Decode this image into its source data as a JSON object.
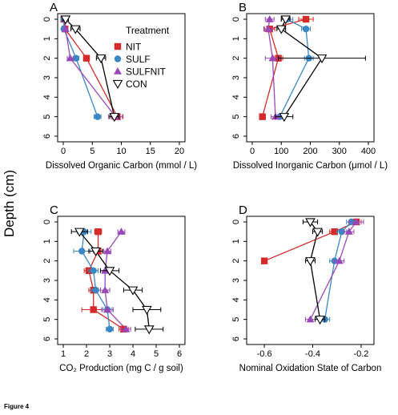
{
  "figure_caption": "Figure 4",
  "y_axis_title": "Depth (cm)",
  "legend": {
    "title": "Treatment",
    "placement": "top-right of panel A",
    "entries": [
      {
        "name": "NIT",
        "marker": "square",
        "color": "#d42a2a"
      },
      {
        "name": "SULF",
        "marker": "circle",
        "color": "#3a87c4"
      },
      {
        "name": "SULFNIT",
        "marker": "triangle-up",
        "color": "#9a48b8"
      },
      {
        "name": "CON",
        "marker": "triangle-down-open",
        "color": "#000000"
      }
    ]
  },
  "chart_data": [
    {
      "panel": "A",
      "type": "line",
      "xlabel": "Dissolved Organic Carbon (mmol / L)",
      "xlim": [
        0,
        20
      ],
      "ylim": [
        6,
        0
      ],
      "xticks": [
        "0",
        "5",
        "10",
        "15",
        "20"
      ],
      "yticks": [
        "0",
        "1",
        "2",
        "3",
        "4",
        "5",
        "6"
      ],
      "series": [
        {
          "name": "NIT",
          "points": [
            {
              "y": 0,
              "x": 0.1,
              "e": 0.3
            },
            {
              "y": 0.5,
              "x": 0.3,
              "e": 0.3
            },
            {
              "y": 2,
              "x": 4.0,
              "e": 0.5
            },
            {
              "y": 5,
              "x": 9.3,
              "e": 1.0
            }
          ]
        },
        {
          "name": "SULF",
          "points": [
            {
              "y": 0,
              "x": 0.1,
              "e": 0.3
            },
            {
              "y": 0.5,
              "x": 0.1,
              "e": 0.3
            },
            {
              "y": 2,
              "x": 2.2,
              "e": 0.5
            },
            {
              "y": 5,
              "x": 5.9,
              "e": 0.6
            }
          ]
        },
        {
          "name": "SULFNIT",
          "points": [
            {
              "y": 0,
              "x": 0.3,
              "e": 0.3
            },
            {
              "y": 0.5,
              "x": 0.4,
              "e": 0.3
            },
            {
              "y": 2,
              "x": 1.2,
              "e": 0.5
            },
            {
              "y": 5,
              "x": 9.0,
              "e": 1.2
            }
          ]
        },
        {
          "name": "CON",
          "points": [
            {
              "y": 0,
              "x": 0.4,
              "e": 0.5
            },
            {
              "y": 0.5,
              "x": 2.1,
              "e": 0.8
            },
            {
              "y": 2,
              "x": 6.5,
              "e": 0.8
            },
            {
              "y": 5,
              "x": 8.8,
              "e": 0.8
            }
          ]
        }
      ]
    },
    {
      "panel": "B",
      "type": "line",
      "xlabel": "Dissolved Inorganic Carbon (μmol / L)",
      "xlim": [
        0,
        400
      ],
      "ylim": [
        6,
        0
      ],
      "xticks": [
        "0",
        "100",
        "200",
        "300",
        "400"
      ],
      "yticks": [
        "0",
        "1",
        "2",
        "3",
        "4",
        "5",
        "6"
      ],
      "series": [
        {
          "name": "NIT",
          "points": [
            {
              "y": 0,
              "x": 185,
              "e": 25
            },
            {
              "y": 0.5,
              "x": 60,
              "e": 18
            },
            {
              "y": 2,
              "x": 90,
              "e": 15
            },
            {
              "y": 5,
              "x": 35,
              "e": 10
            }
          ]
        },
        {
          "name": "SULF",
          "points": [
            {
              "y": 0,
              "x": 120,
              "e": 20
            },
            {
              "y": 0.5,
              "x": 185,
              "e": 15
            },
            {
              "y": 2,
              "x": 195,
              "e": 15
            },
            {
              "y": 5,
              "x": 95,
              "e": 15
            }
          ]
        },
        {
          "name": "SULFNIT",
          "points": [
            {
              "y": 0,
              "x": 60,
              "e": 15
            },
            {
              "y": 0.5,
              "x": 55,
              "e": 15
            },
            {
              "y": 2,
              "x": 70,
              "e": 25
            },
            {
              "y": 5,
              "x": 80,
              "e": 15
            }
          ]
        },
        {
          "name": "CON",
          "points": [
            {
              "y": 0,
              "x": 115,
              "e": 15
            },
            {
              "y": 0.5,
              "x": 100,
              "e": 15
            },
            {
              "y": 2,
              "x": 240,
              "e": 150
            },
            {
              "y": 5,
              "x": 110,
              "e": 30
            }
          ]
        }
      ]
    },
    {
      "panel": "C",
      "type": "line",
      "xlabel": "CO₂ Production (mg C / g soil)",
      "xlim": [
        1,
        6
      ],
      "ylim": [
        6,
        0
      ],
      "xticks": [
        "1",
        "2",
        "3",
        "4",
        "5",
        "6"
      ],
      "yticks": [
        "0",
        "1",
        "2",
        "3",
        "4",
        "5",
        "6"
      ],
      "series": [
        {
          "name": "NIT",
          "points": [
            {
              "y": 0.5,
              "x": 2.5,
              "e": 0.15
            },
            {
              "y": 1.5,
              "x": 2.5,
              "e": 0.2
            },
            {
              "y": 2.5,
              "x": 2.1,
              "e": 0.2
            },
            {
              "y": 3.5,
              "x": 2.3,
              "e": 0.2
            },
            {
              "y": 4.5,
              "x": 2.3,
              "e": 0.5
            },
            {
              "y": 5.5,
              "x": 3.6,
              "e": 0.2
            }
          ]
        },
        {
          "name": "SULF",
          "points": [
            {
              "y": 0.5,
              "x": 1.9,
              "e": 0.3
            },
            {
              "y": 1.5,
              "x": 1.8,
              "e": 0.35
            },
            {
              "y": 2.5,
              "x": 2.3,
              "e": 0.2
            },
            {
              "y": 3.5,
              "x": 2.4,
              "e": 0.2
            },
            {
              "y": 4.5,
              "x": 2.9,
              "e": 0.2
            },
            {
              "y": 5.5,
              "x": 3.0,
              "e": 0.15
            }
          ]
        },
        {
          "name": "SULFNIT",
          "points": [
            {
              "y": 0.5,
              "x": 3.5,
              "e": 0.15
            },
            {
              "y": 1.5,
              "x": 2.9,
              "e": 0.15
            },
            {
              "y": 2.5,
              "x": 2.8,
              "e": 0.2
            },
            {
              "y": 3.5,
              "x": 2.8,
              "e": 0.2
            },
            {
              "y": 4.5,
              "x": 2.9,
              "e": 0.25
            },
            {
              "y": 5.5,
              "x": 3.7,
              "e": 0.2
            }
          ]
        },
        {
          "name": "CON",
          "points": [
            {
              "y": 0.5,
              "x": 1.7,
              "e": 0.35
            },
            {
              "y": 1.5,
              "x": 2.4,
              "e": 0.3
            },
            {
              "y": 2.5,
              "x": 3.0,
              "e": 0.4
            },
            {
              "y": 3.5,
              "x": 4.0,
              "e": 0.4
            },
            {
              "y": 4.5,
              "x": 4.6,
              "e": 0.6
            },
            {
              "y": 5.5,
              "x": 4.7,
              "e": 0.6
            }
          ]
        }
      ]
    },
    {
      "panel": "D",
      "type": "line",
      "xlabel": "Nominal Oxidation State of Carbon",
      "xlim": [
        -0.65,
        -0.17
      ],
      "ylim": [
        6,
        0
      ],
      "xticks": [
        "-0.6",
        "-0.4",
        "-0.2"
      ],
      "xtick_values": [
        -0.6,
        -0.4,
        -0.2
      ],
      "yticks": [
        "0",
        "1",
        "2",
        "3",
        "4",
        "5",
        "6"
      ],
      "series": [
        {
          "name": "NIT",
          "points": [
            {
              "y": 0,
              "x": -0.22,
              "e": 0.02
            },
            {
              "y": 0.5,
              "x": -0.31,
              "e": 0.02
            },
            {
              "y": 2,
              "x": -0.6,
              "e": 0.01
            }
          ]
        },
        {
          "name": "SULF",
          "points": [
            {
              "y": 0,
              "x": -0.24,
              "e": 0.02
            },
            {
              "y": 0.5,
              "x": -0.28,
              "e": 0.02
            },
            {
              "y": 2,
              "x": -0.31,
              "e": 0.02
            },
            {
              "y": 5,
              "x": -0.35,
              "e": 0.02
            }
          ]
        },
        {
          "name": "SULFNIT",
          "points": [
            {
              "y": 0,
              "x": -0.22,
              "e": 0.03
            },
            {
              "y": 0.5,
              "x": -0.25,
              "e": 0.02
            },
            {
              "y": 2,
              "x": -0.29,
              "e": 0.02
            },
            {
              "y": 5,
              "x": -0.41,
              "e": 0.02
            }
          ]
        },
        {
          "name": "CON",
          "points": [
            {
              "y": 0,
              "x": -0.41,
              "e": 0.03
            },
            {
              "y": 0.5,
              "x": -0.38,
              "e": 0.02
            },
            {
              "y": 2,
              "x": -0.41,
              "e": 0.02
            },
            {
              "y": 5,
              "x": -0.37,
              "e": 0.02
            }
          ]
        }
      ]
    }
  ]
}
